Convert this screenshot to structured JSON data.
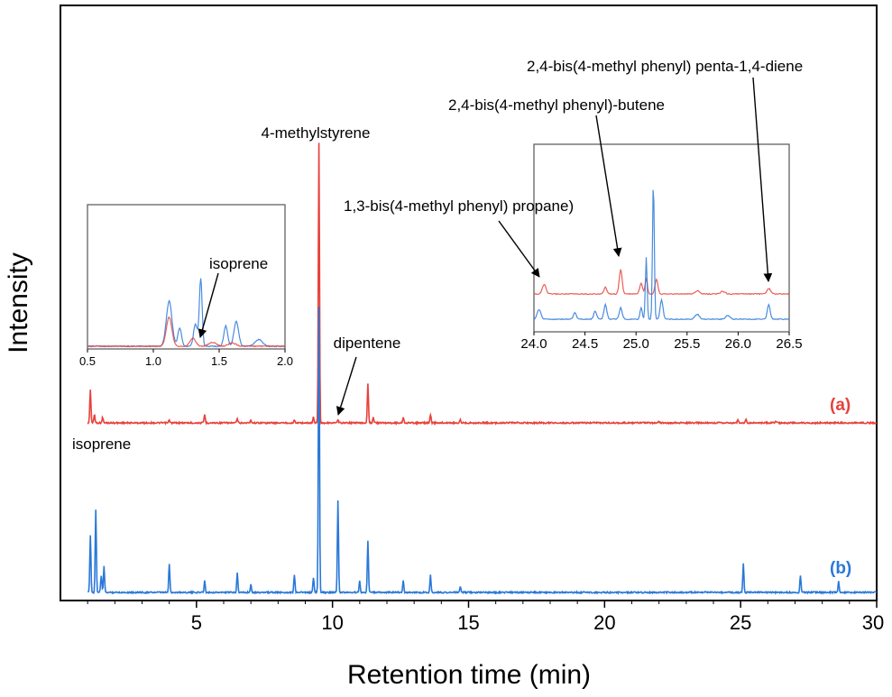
{
  "chart_data": {
    "type": "line",
    "xlabel": "Retention time (min)",
    "ylabel": "Intensity",
    "xlim": [
      0,
      30
    ],
    "x_ticks": [
      "5",
      "10",
      "15",
      "20",
      "25",
      "30"
    ],
    "x_tick_values": [
      5,
      10,
      15,
      20,
      25,
      30
    ],
    "grid": false,
    "series": [
      {
        "name": "(a)",
        "color": "#e8413b",
        "peaks": [
          {
            "x": 1.1,
            "h": 0.12
          },
          {
            "x": 1.25,
            "h": 0.03
          },
          {
            "x": 1.55,
            "h": 0.02
          },
          {
            "x": 4.0,
            "h": 0.01
          },
          {
            "x": 5.3,
            "h": 0.03
          },
          {
            "x": 6.5,
            "h": 0.015
          },
          {
            "x": 7.0,
            "h": 0.01
          },
          {
            "x": 8.6,
            "h": 0.01
          },
          {
            "x": 9.3,
            "h": 0.02
          },
          {
            "x": 9.5,
            "h": 1.0
          },
          {
            "x": 10.2,
            "h": 0.01
          },
          {
            "x": 11.3,
            "h": 0.14
          },
          {
            "x": 11.5,
            "h": 0.02
          },
          {
            "x": 12.6,
            "h": 0.02
          },
          {
            "x": 13.6,
            "h": 0.03
          },
          {
            "x": 14.7,
            "h": 0.01
          },
          {
            "x": 22.0,
            "h": 0.005
          },
          {
            "x": 24.9,
            "h": 0.012
          },
          {
            "x": 25.2,
            "h": 0.012
          },
          {
            "x": 26.3,
            "h": 0.006
          }
        ]
      },
      {
        "name": "(b)",
        "color": "#2a78d8",
        "peaks": [
          {
            "x": 1.1,
            "h": 0.2
          },
          {
            "x": 1.3,
            "h": 0.29
          },
          {
            "x": 1.5,
            "h": 0.06
          },
          {
            "x": 1.6,
            "h": 0.09
          },
          {
            "x": 4.0,
            "h": 0.1
          },
          {
            "x": 5.3,
            "h": 0.04
          },
          {
            "x": 6.5,
            "h": 0.07
          },
          {
            "x": 7.0,
            "h": 0.03
          },
          {
            "x": 8.6,
            "h": 0.06
          },
          {
            "x": 9.3,
            "h": 0.05
          },
          {
            "x": 9.5,
            "h": 1.0
          },
          {
            "x": 10.2,
            "h": 0.32
          },
          {
            "x": 11.0,
            "h": 0.04
          },
          {
            "x": 11.3,
            "h": 0.18
          },
          {
            "x": 12.6,
            "h": 0.04
          },
          {
            "x": 13.6,
            "h": 0.06
          },
          {
            "x": 14.7,
            "h": 0.02
          },
          {
            "x": 25.1,
            "h": 0.1
          },
          {
            "x": 27.2,
            "h": 0.06
          },
          {
            "x": 28.6,
            "h": 0.04
          }
        ]
      }
    ],
    "annotations": [
      {
        "text": "4-methylstyrene",
        "x": 9.5
      },
      {
        "text": "dipentene",
        "x": 10.2
      },
      {
        "text": "isoprene",
        "x": 1.3
      }
    ],
    "insets": [
      {
        "id": "inset-left",
        "xlim": [
          0.5,
          2.0
        ],
        "x_ticks": [
          "0.5",
          "1.0",
          "1.5",
          "2.0"
        ],
        "x_tick_values": [
          0.5,
          1.0,
          1.5,
          2.0
        ],
        "label": "isoprene",
        "label_x": 1.35
      },
      {
        "id": "inset-right",
        "xlim": [
          24.0,
          26.5
        ],
        "x_ticks": [
          "24.0",
          "24.5",
          "25.0",
          "25.5",
          "26.0",
          "26.5"
        ],
        "x_tick_values": [
          24.0,
          24.5,
          25.0,
          25.5,
          26.0,
          26.5
        ],
        "labels": [
          {
            "text": "1,3-bis(4-methyl phenyl) propane)",
            "x": 24.1
          },
          {
            "text": "2,4-bis(4-methyl phenyl)-butene",
            "x": 24.85
          },
          {
            "text": "2,4-bis(4-methyl phenyl) penta-1,4-diene",
            "x": 26.3
          }
        ]
      }
    ]
  }
}
